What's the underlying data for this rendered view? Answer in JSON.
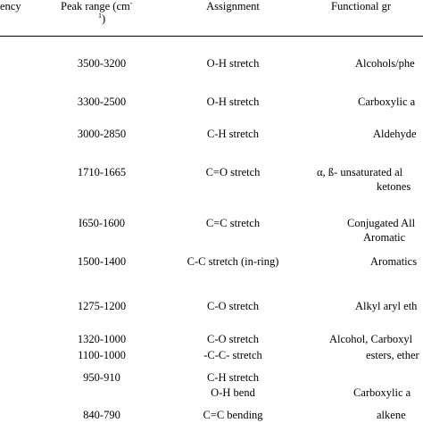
{
  "headers": {
    "frequency_partial": "ency",
    "peak_range_line1": "Peak range (cm",
    "peak_range_sup1": "-",
    "peak_range_sup2": "1",
    "peak_range_close": ")",
    "assignment": "Assignment",
    "functional_partial": "Functional gr"
  },
  "rows": [
    {
      "range": "3500-3200",
      "assignment": "O-H stretch",
      "group": "Alcohols/phe"
    },
    {
      "range": "3300-2500",
      "assignment": "O-H stretch",
      "group": "Carboxylic a"
    },
    {
      "range": "3000-2850",
      "assignment": "C-H stretch",
      "group": "Aldehyde"
    },
    {
      "range": "1710-1665",
      "assignment": "C=O stretch",
      "group": "α, ß- unsaturated al",
      "group_line2": "ketones"
    },
    {
      "range": "I650-1600",
      "assignment": "C=C stretch",
      "group": "Conjugated All",
      "group_line2": "Aromatic"
    },
    {
      "range": "1500-1400",
      "assignment": "C-C stretch (in-ring)",
      "group": "Aromatics"
    },
    {
      "range": "1275-1200",
      "assignment": "C-O stretch",
      "group": "Alkyl aryl eth"
    },
    {
      "range": "1320-1000",
      "assignment": "C-O stretch",
      "group": "Alcohol, Carboxyl"
    },
    {
      "range": "1100-1000",
      "assignment": "-C-C- stretch",
      "group": "esters, ether"
    },
    {
      "range": "950-910",
      "assignment": "C-H stretch",
      "assignment_line2": "O-H bend",
      "group": "Carboxylic a"
    },
    {
      "range": "840-790",
      "assignment": "C=C bending",
      "group": "alkene"
    }
  ]
}
